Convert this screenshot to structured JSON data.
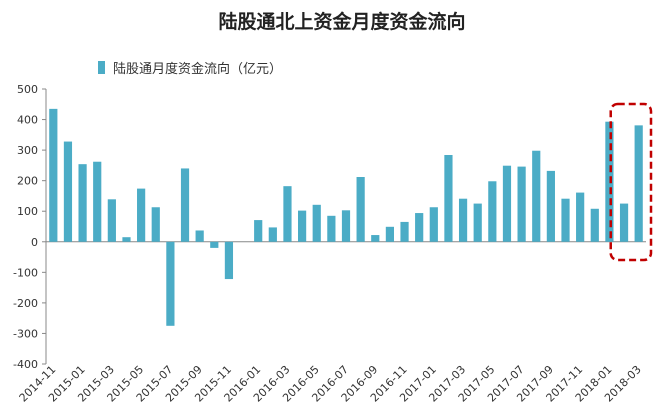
{
  "chart_data": {
    "type": "bar",
    "title": "陆股通北上资金月度资金流向",
    "xlabel": "",
    "ylabel": "",
    "ylim": [
      -400,
      500
    ],
    "yticks": [
      500,
      400,
      300,
      200,
      100,
      0,
      -100,
      -200,
      -300,
      -400
    ],
    "grid": false,
    "legend_position": "top-left",
    "bar_color": "#4bacc6",
    "highlight_color": "#c00000",
    "categories": [
      "2014-11",
      "2014-12",
      "2015-01",
      "2015-02",
      "2015-03",
      "2015-04",
      "2015-05",
      "2015-06",
      "2015-07",
      "2015-08",
      "2015-09",
      "2015-10",
      "2015-11",
      "2015-12",
      "2016-01",
      "2016-02",
      "2016-03",
      "2016-04",
      "2016-05",
      "2016-06",
      "2016-07",
      "2016-08",
      "2016-09",
      "2016-10",
      "2016-11",
      "2016-12",
      "2017-01",
      "2017-02",
      "2017-03",
      "2017-04",
      "2017-05",
      "2017-06",
      "2017-07",
      "2017-08",
      "2017-09",
      "2017-10",
      "2017-11",
      "2017-12",
      "2018-01",
      "2018-02",
      "2018-03"
    ],
    "tick_labels": [
      "2014-11",
      "2015-01",
      "2015-03",
      "2015-05",
      "2015-07",
      "2015-09",
      "2015-11",
      "2016-01",
      "2016-03",
      "2016-05",
      "2016-07",
      "2016-09",
      "2016-11",
      "2017-01",
      "2017-03",
      "2017-05",
      "2017-07",
      "2017-09",
      "2017-11",
      "2018-01",
      "2018-03"
    ],
    "series": [
      {
        "name": "陆股通月度资金流向（亿元）",
        "values": [
          435,
          328,
          254,
          262,
          139,
          15,
          174,
          113,
          -275,
          240,
          37,
          -20,
          -122,
          0,
          71,
          47,
          182,
          102,
          121,
          85,
          103,
          212,
          22,
          49,
          65,
          94,
          113,
          284,
          141,
          125,
          198,
          249,
          246,
          298,
          232,
          141,
          161,
          108,
          393,
          125,
          381
        ]
      }
    ],
    "highlighted_categories": [
      "2018-02",
      "2018-03"
    ]
  }
}
